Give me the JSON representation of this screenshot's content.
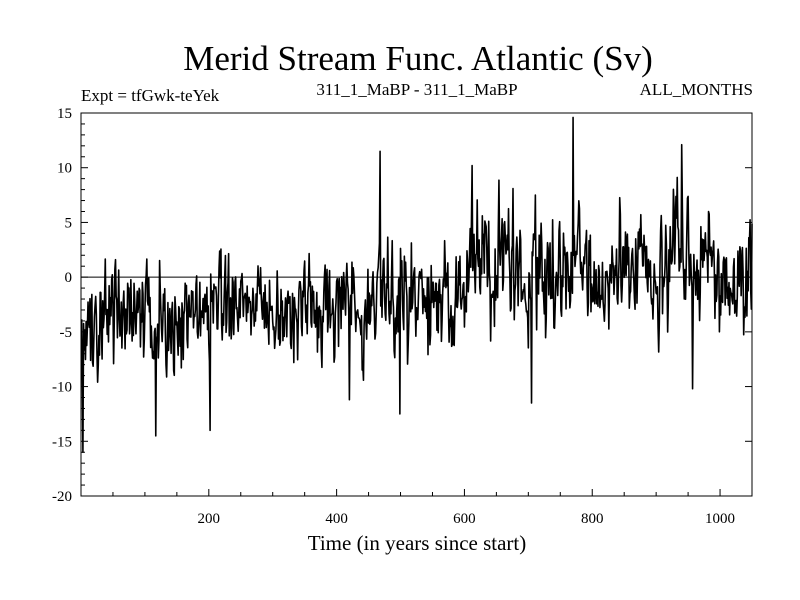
{
  "chart_data": {
    "type": "line",
    "title": "Merid Stream Func. Atlantic (Sv)",
    "subtitle_left": "Expt = tfGwk-teYek",
    "subtitle_center": "311_1_MaBP - 311_1_MaBP",
    "subtitle_right": "ALL_MONTHS",
    "xlabel": "Time (in years since start)",
    "ylabel": "",
    "xlim": [
      0,
      1050
    ],
    "ylim": [
      -20,
      15
    ],
    "xticks": [
      200,
      400,
      600,
      800,
      1000
    ],
    "yticks": [
      15,
      10,
      5,
      0,
      -5,
      -10,
      -15,
      -20
    ],
    "zero_line": 0,
    "grid": false,
    "series": [
      {
        "name": "Merid Stream Func. Atlantic",
        "color": "#000000",
        "note": "annual time series, years 1-1050",
        "segments": [
          {
            "x_start": 1,
            "x_end": 200,
            "mean": -3.5,
            "amplitude": 4.0
          },
          {
            "x_start": 200,
            "x_end": 450,
            "mean": -2.5,
            "amplitude": 4.0
          },
          {
            "x_start": 450,
            "x_end": 600,
            "mean": -2.0,
            "amplitude": 4.5
          },
          {
            "x_start": 600,
            "x_end": 1050,
            "mean": 0.5,
            "amplitude": 5.0
          }
        ],
        "peaks": [
          {
            "x": 3,
            "y": -16
          },
          {
            "x": 117,
            "y": -14.5
          },
          {
            "x": 202,
            "y": -14
          },
          {
            "x": 420,
            "y": -11.2
          },
          {
            "x": 468,
            "y": 11.5
          },
          {
            "x": 499,
            "y": -12.5
          },
          {
            "x": 612,
            "y": 10.2
          },
          {
            "x": 705,
            "y": -11.5
          },
          {
            "x": 770,
            "y": 14.6
          },
          {
            "x": 940,
            "y": 12.1
          },
          {
            "x": 957,
            "y": -10.2
          }
        ]
      }
    ]
  }
}
